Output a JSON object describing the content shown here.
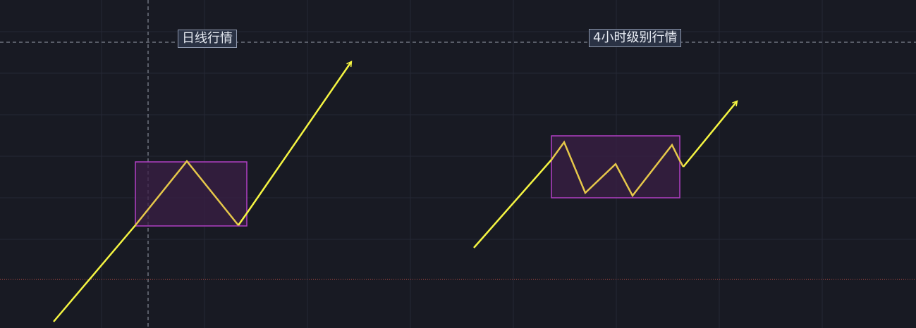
{
  "labels": {
    "daily": "日线行情",
    "h4": "4小时级别行情"
  },
  "colors": {
    "background": "#181a23",
    "grid": "#252834",
    "crosshair": "#9aa0ad",
    "price_line": "#c0504a",
    "trend_line": "#f5f542",
    "zigzag_line": "#e6c84a",
    "range_box_stroke": "#b13fc4",
    "range_box_fill": "#3a1f45",
    "label_bg": "#2a3244",
    "label_border": "#8e98ad",
    "label_text": "#e7ebf2"
  }
}
